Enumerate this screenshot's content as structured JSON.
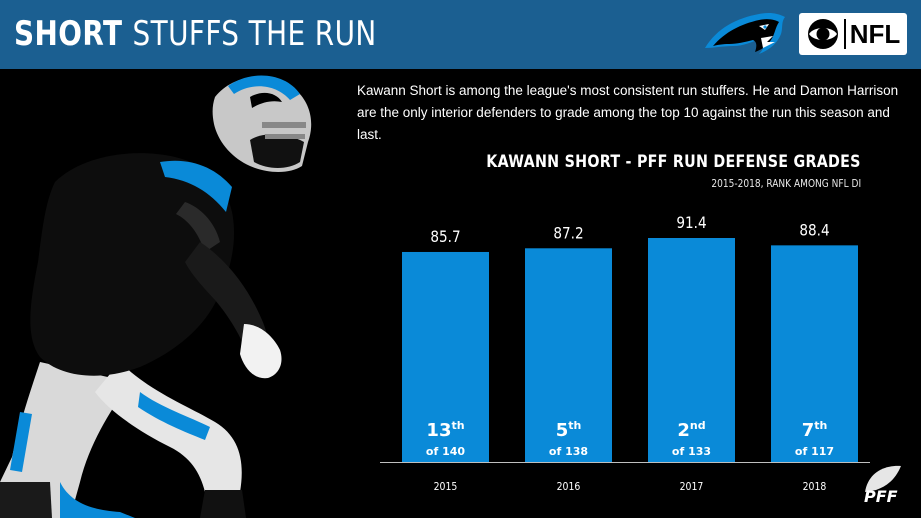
{
  "header": {
    "title_bold": "SHORT",
    "title_rest": "STUFFS THE RUN",
    "background_color": "#1b5f91",
    "team_logo_icon": "panther-icon",
    "network_logo_icon": "cbs-eye-icon",
    "network_logo_text": "NFL"
  },
  "description": "Kawann Short is among the league's most consistent run stuffers.  He and Damon Harrison are the only interior defenders to grade among the top 10 against the run this season and last.",
  "footer": {
    "brand_icon": "pff-logo-icon"
  },
  "chart_data": {
    "type": "bar",
    "title": "KAWANN SHORT - PFF RUN DEFENSE GRADES",
    "subtitle": "2015-2018, RANK AMONG NFL DI",
    "categories": [
      "2015",
      "2016",
      "2017",
      "2018"
    ],
    "values": [
      85.7,
      87.2,
      91.4,
      88.4
    ],
    "value_labels": [
      "85.7",
      "87.2",
      "91.4",
      "88.4"
    ],
    "rank_numbers": [
      "13",
      "5",
      "2",
      "7"
    ],
    "rank_suffixes": [
      "th",
      "th",
      "nd",
      "th"
    ],
    "rank_of": [
      "of 140",
      "of 138",
      "of 133",
      "of 117"
    ],
    "bar_color": "#0a8ad8",
    "xlabel": "",
    "ylabel": "",
    "grid": false,
    "legend": "none"
  }
}
